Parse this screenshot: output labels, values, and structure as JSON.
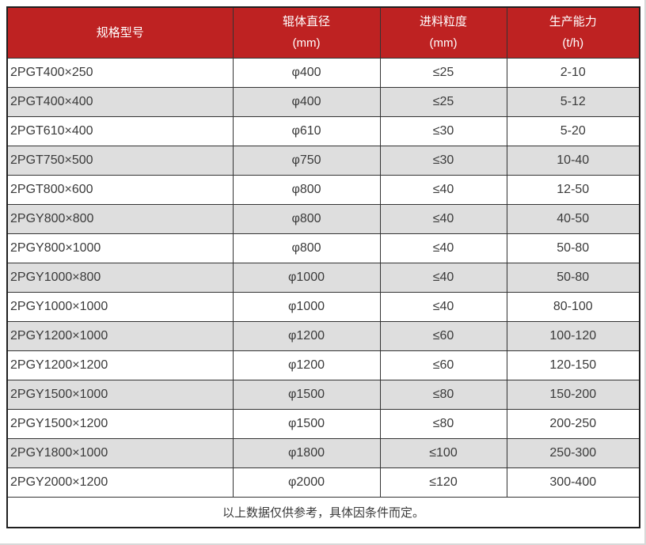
{
  "colors": {
    "header_bg": "#BE2222",
    "header_text": "#FFFFFF",
    "row_bg": "#FFFFFF",
    "row_alt_bg": "#DEDEDE",
    "border": "#333333",
    "outer_border": "#1F1F1F",
    "body_text": "#3A3A3A",
    "page_edge": "#D8D8D8"
  },
  "table": {
    "columns": [
      {
        "label": "规格型号",
        "unit": ""
      },
      {
        "label": "辊体直径",
        "unit": "(mm)"
      },
      {
        "label": "进料粒度",
        "unit": "(mm)"
      },
      {
        "label": "生产能力",
        "unit": "(t/h)"
      }
    ],
    "rows": [
      {
        "model": "2PGT400×250",
        "roller_diameter": "φ400",
        "feed_size": "≤25",
        "capacity": "2-10"
      },
      {
        "model": "2PGT400×400",
        "roller_diameter": "φ400",
        "feed_size": "≤25",
        "capacity": "5-12"
      },
      {
        "model": "2PGT610×400",
        "roller_diameter": "φ610",
        "feed_size": "≤30",
        "capacity": "5-20"
      },
      {
        "model": "2PGT750×500",
        "roller_diameter": "φ750",
        "feed_size": "≤30",
        "capacity": "10-40"
      },
      {
        "model": "2PGT800×600",
        "roller_diameter": "φ800",
        "feed_size": "≤40",
        "capacity": "12-50"
      },
      {
        "model": "2PGY800×800",
        "roller_diameter": "φ800",
        "feed_size": "≤40",
        "capacity": "40-50"
      },
      {
        "model": "2PGY800×1000",
        "roller_diameter": "φ800",
        "feed_size": "≤40",
        "capacity": "50-80"
      },
      {
        "model": "2PGY1000×800",
        "roller_diameter": "φ1000",
        "feed_size": "≤40",
        "capacity": "50-80"
      },
      {
        "model": "2PGY1000×1000",
        "roller_diameter": "φ1000",
        "feed_size": "≤40",
        "capacity": "80-100"
      },
      {
        "model": "2PGY1200×1000",
        "roller_diameter": "φ1200",
        "feed_size": "≤60",
        "capacity": "100-120"
      },
      {
        "model": "2PGY1200×1200",
        "roller_diameter": "φ1200",
        "feed_size": "≤60",
        "capacity": "120-150"
      },
      {
        "model": "2PGY1500×1000",
        "roller_diameter": "φ1500",
        "feed_size": "≤80",
        "capacity": "150-200"
      },
      {
        "model": "2PGY1500×1200",
        "roller_diameter": "φ1500",
        "feed_size": "≤80",
        "capacity": "200-250"
      },
      {
        "model": "2PGY1800×1000",
        "roller_diameter": "φ1800",
        "feed_size": "≤100",
        "capacity": "250-300"
      },
      {
        "model": "2PGY2000×1200",
        "roller_diameter": "φ2000",
        "feed_size": "≤120",
        "capacity": "300-400"
      }
    ],
    "note": "以上数据仅供参考，具体因条件而定。"
  }
}
